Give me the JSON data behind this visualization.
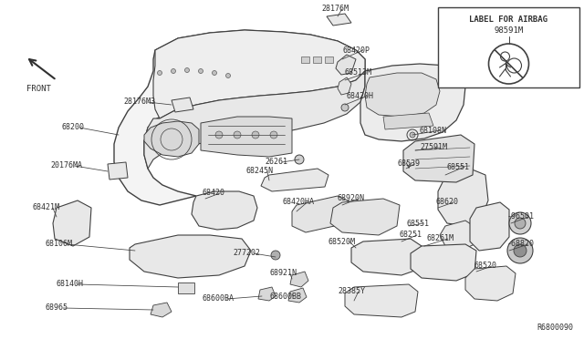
{
  "bg_color": "#ffffff",
  "line_color": "#404040",
  "text_color": "#303030",
  "diagram_ref": "R6800090",
  "label_box_title": "LABEL FOR AIRBAG",
  "label_box_part": "98591M",
  "fig_w": 6.4,
  "fig_h": 3.72,
  "dpi": 100
}
